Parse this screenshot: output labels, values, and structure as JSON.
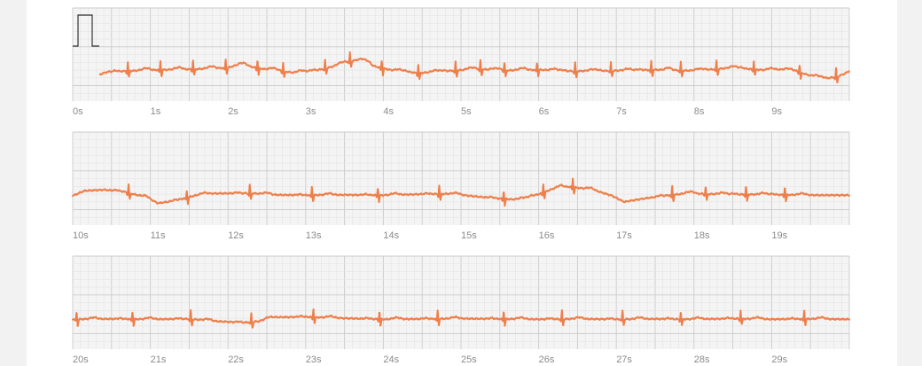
{
  "chart_data": {
    "type": "line",
    "title": "",
    "xlabel": "",
    "ylabel": "",
    "grid": true,
    "colors": {
      "trace": "#ee7f4a",
      "grid_minor": "#e4e4e4",
      "grid_major": "#cbcbcb",
      "calibration": "#333333"
    },
    "calibration_pulse_shown": true,
    "strips": [
      {
        "xlim": [
          0,
          10
        ],
        "tick_labels": [
          "0s",
          "1s",
          "2s",
          "3s",
          "4s",
          "5s",
          "6s",
          "7s",
          "8s",
          "9s"
        ],
        "beats": [
          0.71,
          1.13,
          1.55,
          1.97,
          2.38,
          2.71,
          3.25,
          3.57,
          3.98,
          4.45,
          4.93,
          5.25,
          5.56,
          5.98,
          6.47,
          6.93,
          7.45,
          7.83,
          8.29,
          8.77,
          9.36,
          9.83
        ],
        "baseline": [
          [
            0.35,
            -0.08
          ],
          [
            0.45,
            0.0
          ],
          [
            1.0,
            0.05
          ],
          [
            1.6,
            0.08
          ],
          [
            2.0,
            0.12
          ],
          [
            2.15,
            0.22
          ],
          [
            2.4,
            0.1
          ],
          [
            2.7,
            0.02
          ],
          [
            2.85,
            -0.03
          ],
          [
            3.15,
            0.05
          ],
          [
            3.4,
            0.18
          ],
          [
            3.55,
            0.3
          ],
          [
            3.72,
            0.38
          ],
          [
            3.85,
            0.18
          ],
          [
            4.1,
            0.05
          ],
          [
            4.45,
            -0.04
          ],
          [
            4.8,
            0.02
          ],
          [
            5.2,
            0.08
          ],
          [
            5.6,
            0.04
          ],
          [
            6.0,
            0.06
          ],
          [
            6.4,
            0.02
          ],
          [
            6.9,
            0.03
          ],
          [
            7.5,
            0.06
          ],
          [
            8.0,
            0.03
          ],
          [
            8.5,
            0.12
          ],
          [
            8.9,
            0.05
          ],
          [
            9.25,
            0.08
          ],
          [
            9.5,
            -0.12
          ],
          [
            9.7,
            -0.2
          ],
          [
            9.85,
            -0.14
          ],
          [
            10.0,
            0.0
          ]
        ]
      },
      {
        "xlim": [
          10,
          20
        ],
        "tick_labels": [
          "10s",
          "11s",
          "12s",
          "13s",
          "14s",
          "15s",
          "16s",
          "17s",
          "18s",
          "19s"
        ],
        "beats": [
          10.72,
          11.47,
          12.28,
          13.08,
          13.93,
          14.72,
          15.55,
          16.06,
          16.44,
          17.72,
          18.15,
          18.67,
          19.17
        ],
        "baseline": [
          [
            10.0,
            0.0
          ],
          [
            10.15,
            0.15
          ],
          [
            10.4,
            0.18
          ],
          [
            10.65,
            0.13
          ],
          [
            10.95,
            -0.05
          ],
          [
            11.1,
            -0.22
          ],
          [
            11.3,
            -0.15
          ],
          [
            11.6,
            0.02
          ],
          [
            11.8,
            0.07
          ],
          [
            12.3,
            0.08
          ],
          [
            12.6,
            0.03
          ],
          [
            13.0,
            0.02
          ],
          [
            13.5,
            0.03
          ],
          [
            14.0,
            0.02
          ],
          [
            14.5,
            0.05
          ],
          [
            14.85,
            0.06
          ],
          [
            15.2,
            -0.02
          ],
          [
            15.5,
            -0.08
          ],
          [
            15.75,
            -0.12
          ],
          [
            16.0,
            0.05
          ],
          [
            16.2,
            0.22
          ],
          [
            16.4,
            0.27
          ],
          [
            16.7,
            0.18
          ],
          [
            16.95,
            0.0
          ],
          [
            17.1,
            -0.18
          ],
          [
            17.3,
            -0.1
          ],
          [
            17.6,
            0.0
          ],
          [
            17.9,
            0.07
          ],
          [
            18.3,
            0.05
          ],
          [
            18.8,
            0.04
          ],
          [
            19.2,
            0.03
          ],
          [
            19.6,
            0.02
          ],
          [
            20.0,
            0.02
          ]
        ]
      },
      {
        "xlim": [
          20,
          30
        ],
        "tick_labels": [
          "20s",
          "21s",
          "22s",
          "23s",
          "24s",
          "25s",
          "26s",
          "27s",
          "28s",
          "29s"
        ],
        "beats": [
          20.05,
          20.77,
          21.52,
          22.3,
          23.1,
          23.95,
          24.7,
          25.55,
          26.3,
          27.08,
          27.83,
          28.6,
          29.42
        ],
        "baseline": [
          [
            20.0,
            0.02
          ],
          [
            20.5,
            0.03
          ],
          [
            21.0,
            0.02
          ],
          [
            21.5,
            0.03
          ],
          [
            21.85,
            -0.04
          ],
          [
            22.2,
            -0.08
          ],
          [
            22.4,
            -0.04
          ],
          [
            22.6,
            0.08
          ],
          [
            23.0,
            0.09
          ],
          [
            23.5,
            0.05
          ],
          [
            24.0,
            0.02
          ],
          [
            24.5,
            0.03
          ],
          [
            25.0,
            0.04
          ],
          [
            25.5,
            0.03
          ],
          [
            26.0,
            0.02
          ],
          [
            26.5,
            0.03
          ],
          [
            27.0,
            0.02
          ],
          [
            27.5,
            0.03
          ],
          [
            28.0,
            0.02
          ],
          [
            28.5,
            0.04
          ],
          [
            29.0,
            0.02
          ],
          [
            29.5,
            0.03
          ],
          [
            30.0,
            0.02
          ]
        ]
      }
    ]
  }
}
